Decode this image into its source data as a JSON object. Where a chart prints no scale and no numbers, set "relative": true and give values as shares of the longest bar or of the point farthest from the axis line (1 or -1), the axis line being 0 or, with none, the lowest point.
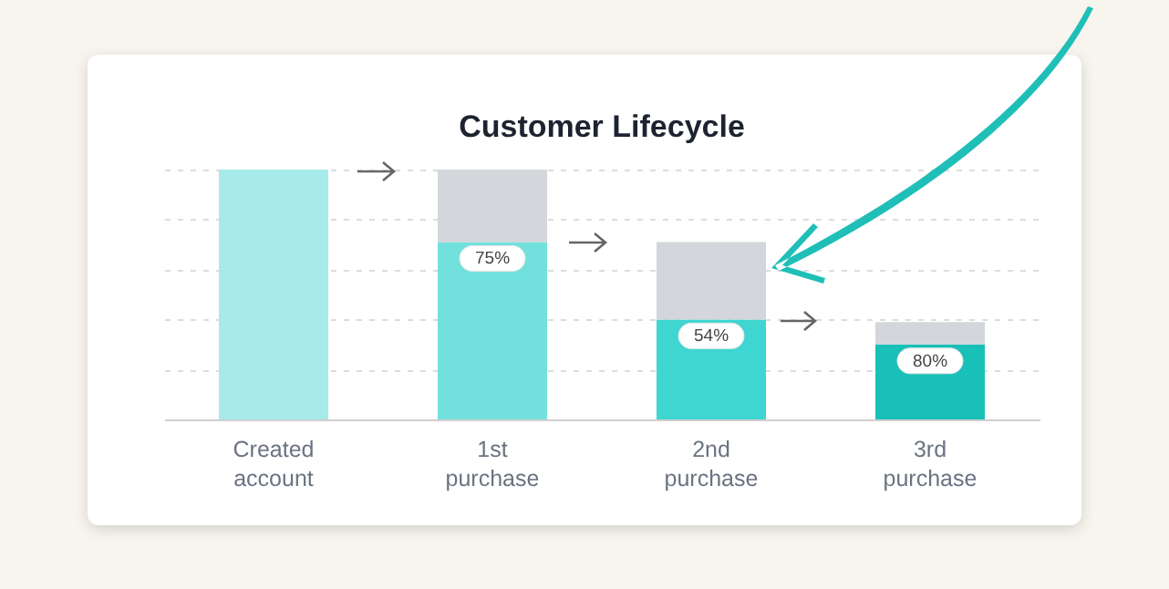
{
  "chart_data": {
    "type": "bar",
    "title": "Customer Lifecycle",
    "categories": [
      "Created account",
      "1st purchase",
      "2nd purchase",
      "3rd purchase"
    ],
    "relative": true,
    "stacked": true,
    "grid": "y",
    "annotations": [
      {
        "text": "75%",
        "x": "1st purchase",
        "y": 0.71
      },
      {
        "text": "54%",
        "x": "2nd purchase",
        "y": 0.4
      },
      {
        "text": "80%",
        "x": "3rd purchase",
        "y": 0.3
      }
    ],
    "series": [
      {
        "colors": [
          "#a6eaea",
          "#72e0dc",
          "#3fd5d0",
          "#18c0b7"
        ],
        "values": [
          1,
          0.71,
          0.4,
          0.3
        ]
      },
      {
        "color": "#d3d6da",
        "values": [
          0,
          0.29,
          0.31,
          0.09
        ]
      }
    ]
  }
}
